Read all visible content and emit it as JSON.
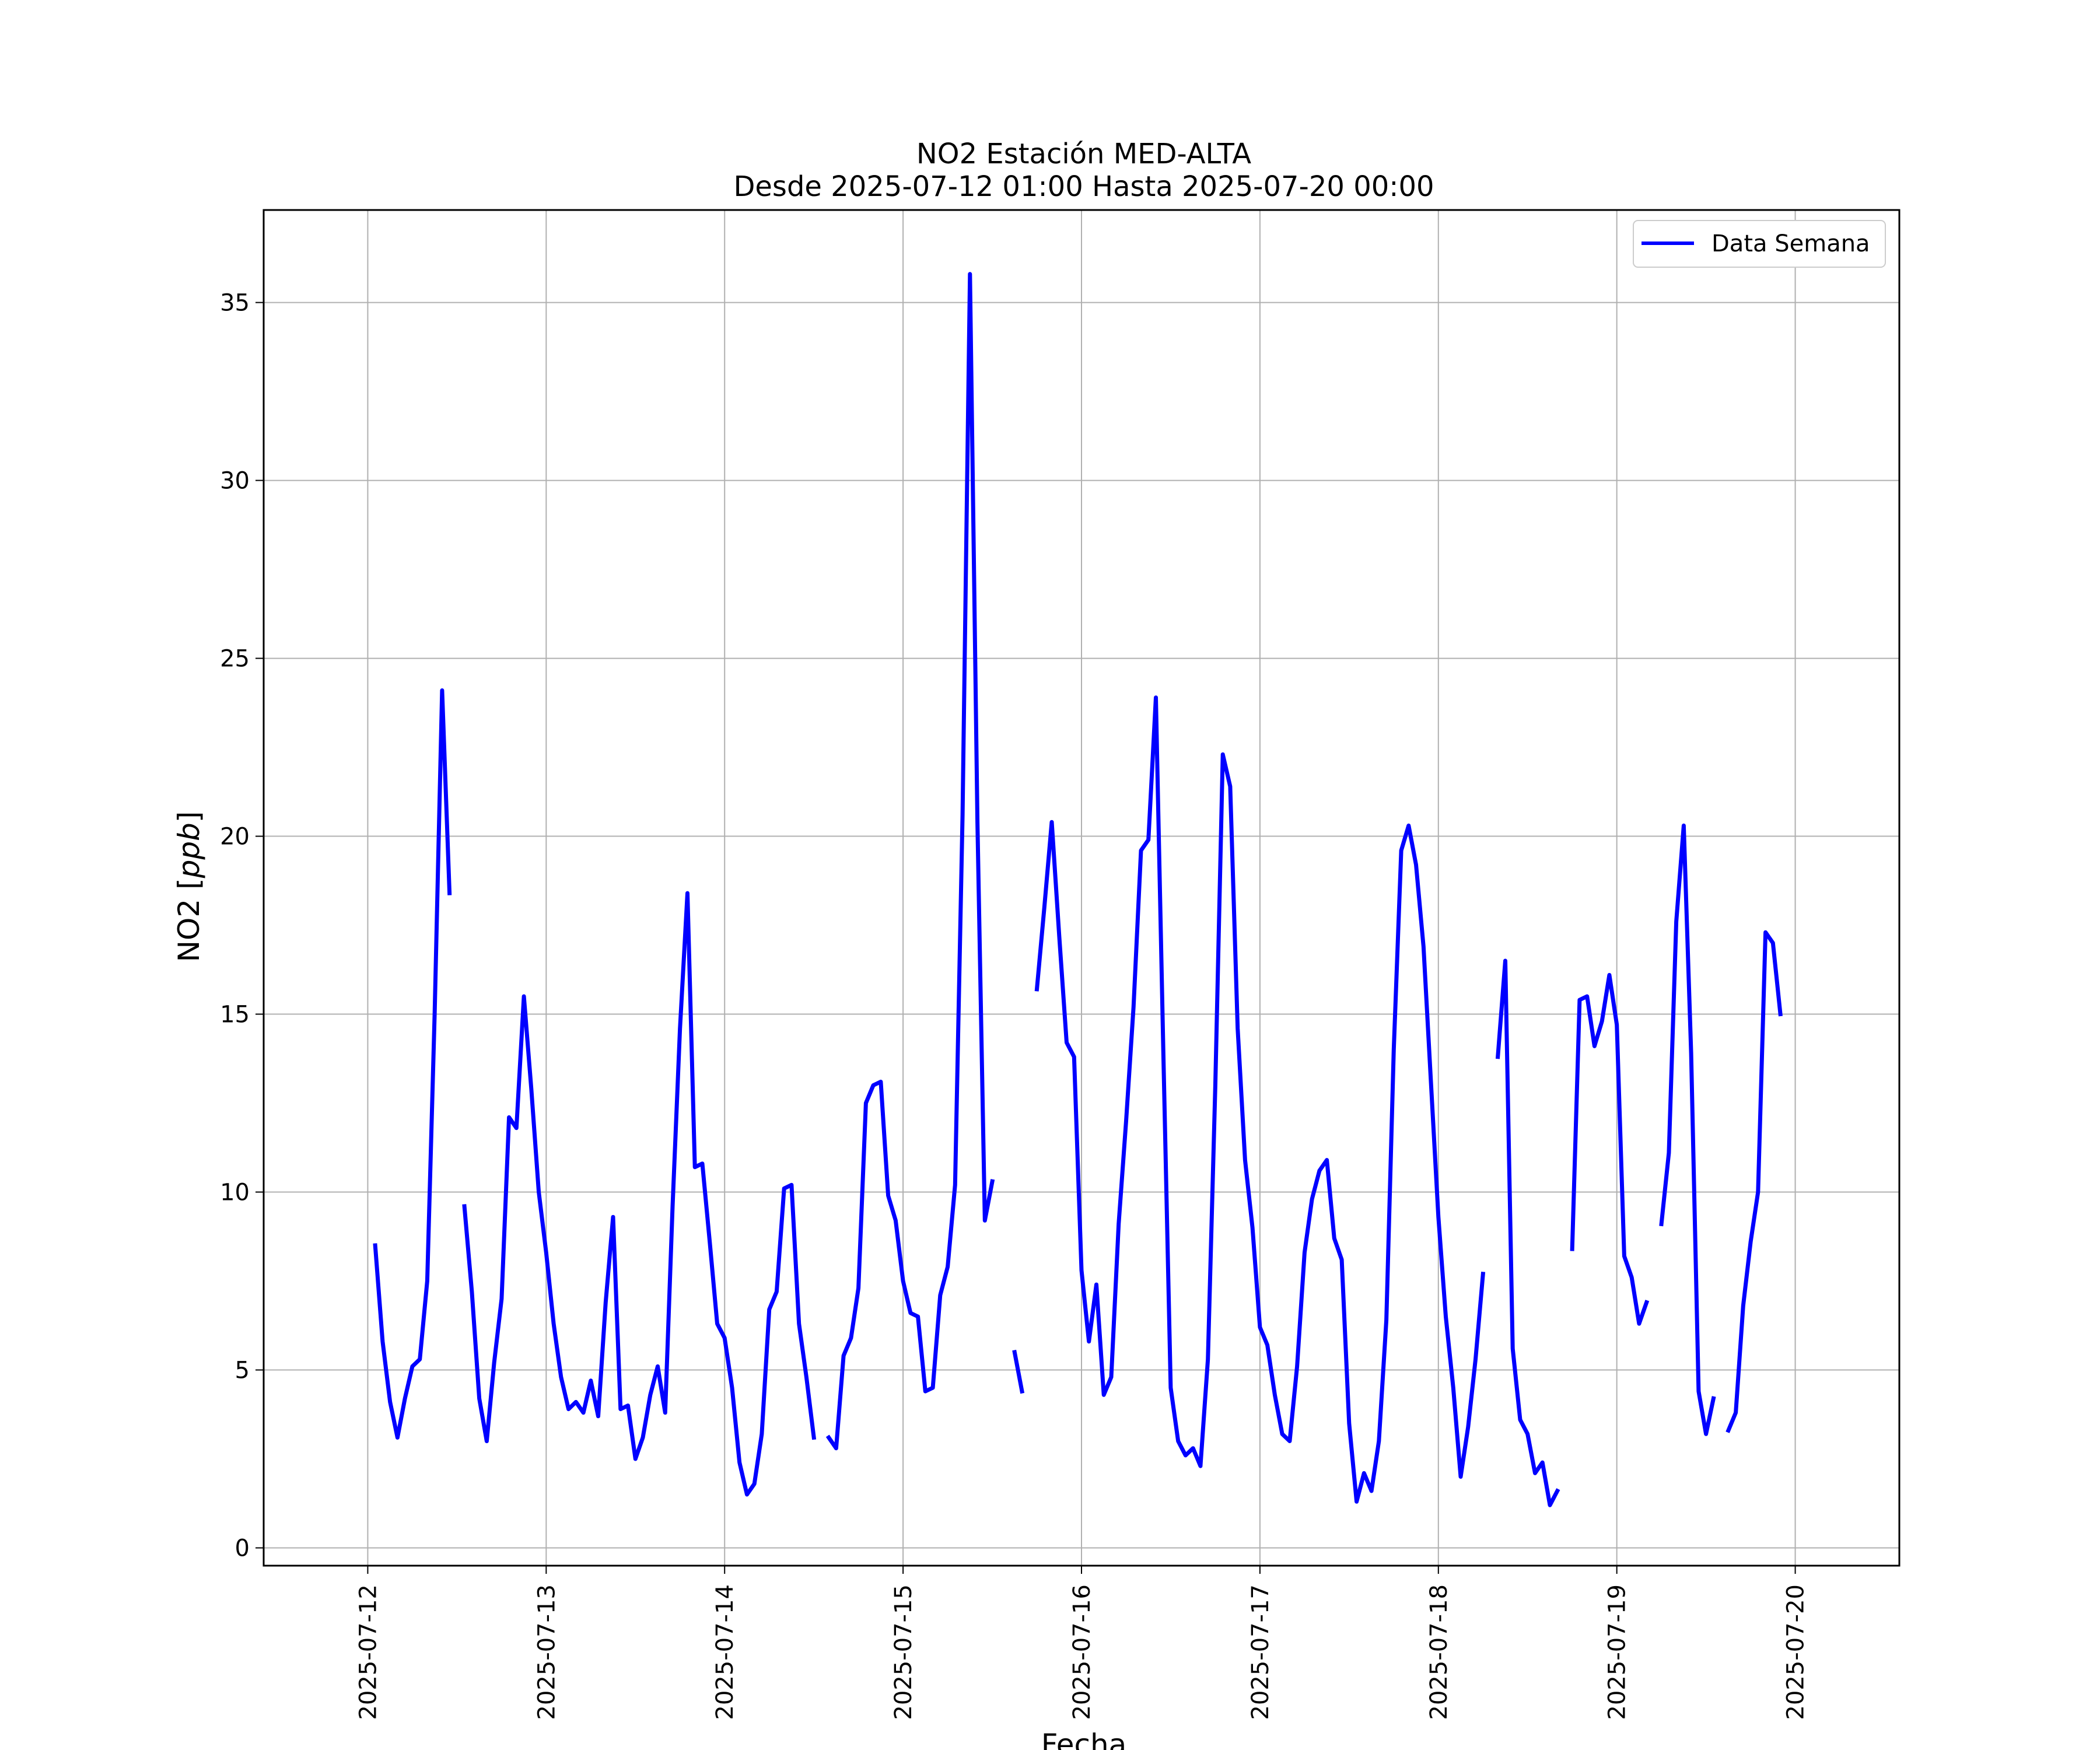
{
  "chart_data": {
    "type": "line",
    "title": "NO2 Estación MED-ALTA",
    "subtitle": "Desde 2025-07-12 01:00 Hasta 2025-07-20 00:00",
    "xlabel": "Fecha",
    "ylabel": "NO2 [ppb]",
    "ylabel_parts": {
      "prefix": "NO2 [",
      "unit": "ppb",
      "suffix": "]"
    },
    "x_type": "datetime",
    "xlim": [
      "2025-07-11T10:00",
      "2025-07-20T14:00"
    ],
    "ylim": [
      -0.5,
      37.6
    ],
    "x_ticks": [
      "2025-07-12",
      "2025-07-13",
      "2025-07-14",
      "2025-07-15",
      "2025-07-16",
      "2025-07-17",
      "2025-07-18",
      "2025-07-19",
      "2025-07-20"
    ],
    "y_ticks": [
      0,
      5,
      10,
      15,
      20,
      25,
      30,
      35
    ],
    "grid": true,
    "legend_position": "top-right",
    "colors": {
      "series": "#0000ff",
      "grid": "#b0b0b0",
      "axes": "#000000"
    },
    "series": [
      {
        "name": "Data Semana",
        "color": "#0000ff",
        "start": "2025-07-12T01:00",
        "interval_hours": 1,
        "values": [
          8.5,
          5.8,
          4.1,
          3.1,
          4.2,
          5.1,
          5.3,
          7.5,
          15.0,
          24.1,
          18.4,
          null,
          9.6,
          7.2,
          4.2,
          3.0,
          5.2,
          7.0,
          12.1,
          11.8,
          15.5,
          12.9,
          10.0,
          8.3,
          6.3,
          4.8,
          3.9,
          4.1,
          3.8,
          4.7,
          3.7,
          6.9,
          9.3,
          3.9,
          4.0,
          2.5,
          3.1,
          4.3,
          5.1,
          3.8,
          9.6,
          14.6,
          18.4,
          10.7,
          10.8,
          8.6,
          6.3,
          5.9,
          4.5,
          2.4,
          1.5,
          1.8,
          3.2,
          6.7,
          7.2,
          10.1,
          10.2,
          6.3,
          4.8,
          3.1,
          null,
          3.1,
          2.8,
          5.4,
          5.9,
          7.3,
          12.5,
          13.0,
          13.1,
          9.9,
          9.2,
          7.5,
          6.6,
          6.5,
          4.4,
          4.5,
          7.1,
          7.9,
          10.2,
          20.6,
          35.8,
          20.4,
          9.2,
          10.3,
          null,
          null,
          5.5,
          4.4,
          null,
          15.7,
          18.0,
          20.4,
          17.2,
          14.2,
          13.8,
          7.8,
          5.8,
          7.4,
          4.3,
          4.8,
          9.1,
          12.0,
          15.2,
          19.6,
          19.9,
          23.9,
          14.0,
          4.5,
          3.0,
          2.6,
          2.8,
          2.3,
          5.3,
          13.0,
          22.3,
          21.4,
          14.6,
          10.9,
          9.0,
          6.2,
          5.7,
          4.3,
          3.2,
          3.0,
          5.1,
          8.3,
          9.8,
          10.6,
          10.9,
          8.7,
          8.1,
          3.5,
          1.3,
          2.1,
          1.6,
          3.0,
          6.4,
          14.0,
          19.6,
          20.3,
          19.2,
          16.9,
          13.1,
          9.3,
          6.5,
          4.5,
          2.0,
          3.4,
          5.3,
          7.7,
          null,
          13.8,
          16.5,
          5.6,
          3.6,
          3.2,
          2.1,
          2.4,
          1.2,
          1.6,
          null,
          8.4,
          15.4,
          15.5,
          14.1,
          14.8,
          16.1,
          14.7,
          8.2,
          7.6,
          6.3,
          6.9,
          null,
          9.1,
          11.1,
          17.6,
          20.3,
          13.9,
          4.4,
          3.2,
          4.2,
          null,
          3.3,
          3.8,
          6.8,
          8.6,
          10.0,
          17.3,
          17.0,
          15.0
        ]
      }
    ]
  }
}
